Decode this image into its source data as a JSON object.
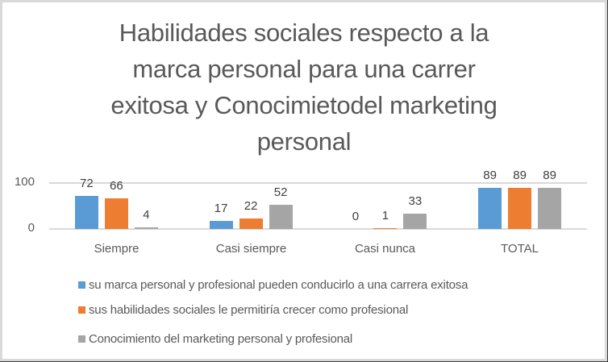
{
  "chart_data": {
    "type": "bar",
    "title": "Habilidades sociales respecto a la marca personal para una carrer exitosa y Conocimietodel marketing personal",
    "title_lines": [
      "Habilidades sociales respecto a la",
      "marca personal para una carrer",
      "exitosa y Conocimietodel marketing",
      "personal"
    ],
    "categories": [
      "Siempre",
      "Casi siempre",
      "Casi nunca",
      "TOTAL"
    ],
    "series": [
      {
        "name": "su marca personal y profesional pueden conducirlo a una carrera exitosa",
        "color": "#5b9bd5",
        "values": [
          72,
          17,
          0,
          89
        ]
      },
      {
        "name": "sus habilidades sociales le permitiría crecer como profesional",
        "color": "#ed7d31",
        "values": [
          66,
          22,
          1,
          89
        ]
      },
      {
        "name": "Conocimiento del marketing personal y profesional",
        "color": "#a5a5a5",
        "values": [
          4,
          52,
          33,
          89
        ]
      }
    ],
    "xlabel": "",
    "ylabel": "",
    "ylim": [
      0,
      100
    ],
    "yticks": [
      "100",
      "0"
    ],
    "grid": true,
    "legend_position": "bottom",
    "data_labels": true
  }
}
